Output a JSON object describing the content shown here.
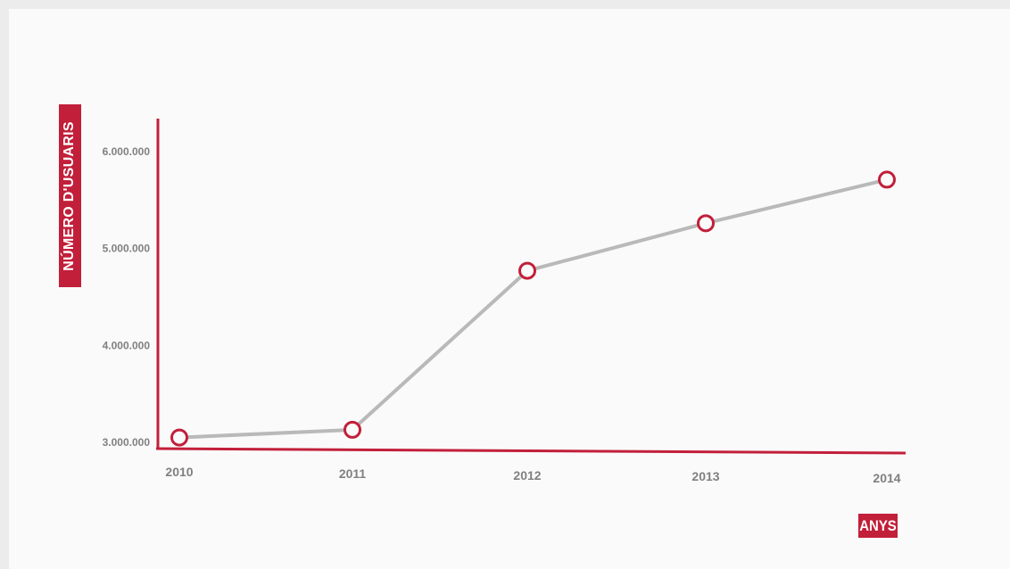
{
  "colors": {
    "axis": "#c21f3a",
    "line": "#b9b9b9",
    "marker": "#c21f3a",
    "tick_text": "#808080",
    "badge_text": "#ffffff"
  },
  "chart_data": {
    "type": "line",
    "title": "",
    "xlabel": "ANYS",
    "ylabel": "NÚMERO D'USUARIS",
    "categories": [
      "2010",
      "2011",
      "2012",
      "2013",
      "2014"
    ],
    "series": [
      {
        "values": [
          3050000,
          3130000,
          4770000,
          5260000,
          5710000
        ]
      }
    ],
    "y_ticks": [
      3000000,
      4000000,
      5000000,
      6000000
    ],
    "y_tick_labels": [
      "3.000.000",
      "4.000.000",
      "5.000.000",
      "6.000.000"
    ],
    "ylim": [
      3000000,
      6000000
    ],
    "grid": false,
    "legend": "none"
  }
}
